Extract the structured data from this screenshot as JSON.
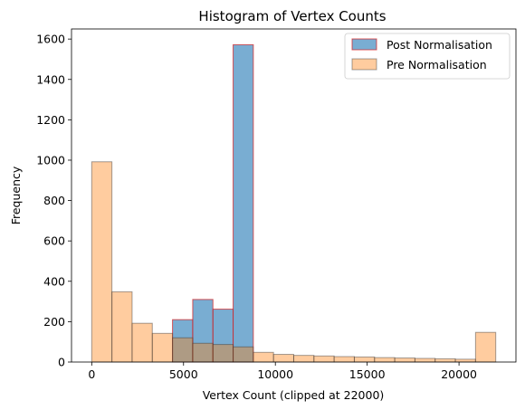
{
  "chart_data": {
    "type": "bar",
    "title": "Histogram of Vertex Counts",
    "xlabel": "Vertex Count (clipped at 22000)",
    "ylabel": "Frequency",
    "xlim": [
      -1100,
      23100
    ],
    "ylim": [
      0,
      1650
    ],
    "xticks": [
      0,
      5000,
      10000,
      15000,
      20000
    ],
    "yticks": [
      0,
      200,
      400,
      600,
      800,
      1000,
      1200,
      1400,
      1600
    ],
    "grid": false,
    "legend_position": "top-right",
    "series": [
      {
        "name": "Post Normalisation",
        "color": "#1f77b4",
        "edge_color": "#d62728",
        "bin_edges": [
          4400,
          5500,
          6600,
          7700,
          8800
        ],
        "values": [
          210,
          310,
          262,
          1572
        ]
      },
      {
        "name": "Pre Normalisation",
        "color": "#ff7f0e",
        "edge_color": "#333333",
        "bin_edges": [
          0,
          1100,
          2200,
          3300,
          4400,
          5500,
          6600,
          7700,
          8800,
          9900,
          11000,
          12100,
          13200,
          14300,
          15400,
          16500,
          17600,
          18700,
          19800,
          20900,
          22000
        ],
        "values": [
          992,
          348,
          192,
          142,
          120,
          93,
          87,
          75,
          48,
          38,
          33,
          30,
          27,
          25,
          22,
          20,
          18,
          16,
          14,
          147
        ]
      }
    ]
  }
}
